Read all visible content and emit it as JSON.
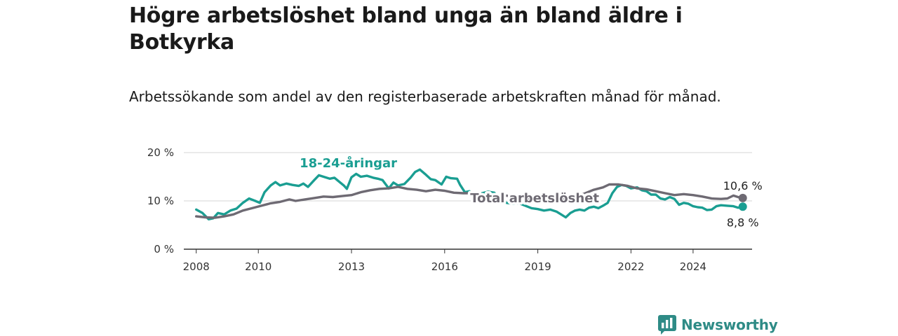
{
  "title": "Högre arbetslöshet bland unga än bland äldre i Botkyrka",
  "subtitle": "Arbetssökande som andel av den registerbaserade arbetskraften månad för månad.",
  "brand": {
    "name": "Newsworthy",
    "color": "#2e8b86",
    "icon": "newsworthy-logo-icon"
  },
  "chart_data": {
    "type": "line",
    "title": "Högre arbetslöshet bland unga än bland äldre i Botkyrka",
    "subtitle": "Arbetssökande som andel av den registerbaserade arbetskraften månad för månad.",
    "xlabel": "",
    "ylabel": "",
    "xlim": [
      2007.6,
      2025.9
    ],
    "ylim": [
      0,
      20
    ],
    "xticks": [
      2008,
      2010,
      2013,
      2016,
      2019,
      2022,
      2024
    ],
    "xtick_labels": [
      "2008",
      "2010",
      "2013",
      "2016",
      "2019",
      "2022",
      "2024"
    ],
    "yticks": [
      0,
      10,
      20
    ],
    "ytick_labels": [
      "0 %",
      "10 %",
      "20 %"
    ],
    "grid": "horizontal",
    "legend": "direct labels",
    "series": [
      {
        "name": "18-24-åringar",
        "color": "#1a9e92",
        "label_at": [
          2012.9,
          17.8
        ],
        "end_label": "8,8 %",
        "points": [
          [
            2008.0,
            8.2
          ],
          [
            2008.2,
            7.5
          ],
          [
            2008.4,
            6.2
          ],
          [
            2008.55,
            6.4
          ],
          [
            2008.7,
            7.5
          ],
          [
            2008.9,
            7.2
          ],
          [
            2009.1,
            8.0
          ],
          [
            2009.3,
            8.4
          ],
          [
            2009.5,
            9.6
          ],
          [
            2009.7,
            10.5
          ],
          [
            2009.9,
            10.0
          ],
          [
            2010.05,
            9.6
          ],
          [
            2010.2,
            11.8
          ],
          [
            2010.4,
            13.2
          ],
          [
            2010.55,
            13.9
          ],
          [
            2010.7,
            13.2
          ],
          [
            2010.9,
            13.6
          ],
          [
            2011.1,
            13.3
          ],
          [
            2011.3,
            13.1
          ],
          [
            2011.45,
            13.6
          ],
          [
            2011.6,
            12.9
          ],
          [
            2011.8,
            14.3
          ],
          [
            2011.95,
            15.3
          ],
          [
            2012.1,
            15.0
          ],
          [
            2012.3,
            14.6
          ],
          [
            2012.45,
            14.8
          ],
          [
            2012.6,
            14.0
          ],
          [
            2012.75,
            13.2
          ],
          [
            2012.85,
            12.5
          ],
          [
            2013.0,
            14.9
          ],
          [
            2013.15,
            15.6
          ],
          [
            2013.3,
            15.0
          ],
          [
            2013.5,
            15.2
          ],
          [
            2013.7,
            14.8
          ],
          [
            2013.85,
            14.6
          ],
          [
            2014.0,
            14.3
          ],
          [
            2014.2,
            12.6
          ],
          [
            2014.35,
            13.8
          ],
          [
            2014.5,
            13.2
          ],
          [
            2014.7,
            13.5
          ],
          [
            2014.9,
            14.8
          ],
          [
            2015.05,
            16.0
          ],
          [
            2015.2,
            16.5
          ],
          [
            2015.4,
            15.4
          ],
          [
            2015.55,
            14.5
          ],
          [
            2015.7,
            14.3
          ],
          [
            2015.9,
            13.4
          ],
          [
            2016.05,
            15.0
          ],
          [
            2016.2,
            14.7
          ],
          [
            2016.4,
            14.6
          ],
          [
            2016.5,
            13.3
          ],
          [
            2016.65,
            11.8
          ],
          [
            2016.8,
            12.0
          ],
          [
            2016.95,
            11.4
          ],
          [
            2017.1,
            10.4
          ],
          [
            2017.2,
            11.6
          ],
          [
            2017.4,
            11.9
          ],
          [
            2017.6,
            11.7
          ],
          [
            2017.8,
            10.0
          ],
          [
            2018.0,
            9.6
          ],
          [
            2018.2,
            9.4
          ],
          [
            2018.4,
            9.5
          ],
          [
            2018.6,
            9.0
          ],
          [
            2018.8,
            8.5
          ],
          [
            2019.0,
            8.3
          ],
          [
            2019.2,
            8.0
          ],
          [
            2019.4,
            8.2
          ],
          [
            2019.6,
            7.8
          ],
          [
            2019.75,
            7.2
          ],
          [
            2019.9,
            6.6
          ],
          [
            2020.05,
            7.5
          ],
          [
            2020.2,
            8.0
          ],
          [
            2020.35,
            8.2
          ],
          [
            2020.5,
            8.0
          ],
          [
            2020.65,
            8.6
          ],
          [
            2020.8,
            8.8
          ],
          [
            2020.95,
            8.5
          ],
          [
            2021.1,
            9.0
          ],
          [
            2021.25,
            9.6
          ],
          [
            2021.4,
            11.6
          ],
          [
            2021.55,
            12.9
          ],
          [
            2021.7,
            13.3
          ],
          [
            2021.85,
            13.1
          ],
          [
            2022.0,
            12.6
          ],
          [
            2022.2,
            12.8
          ],
          [
            2022.35,
            12.2
          ],
          [
            2022.5,
            12.0
          ],
          [
            2022.65,
            11.3
          ],
          [
            2022.8,
            11.3
          ],
          [
            2022.95,
            10.5
          ],
          [
            2023.1,
            10.3
          ],
          [
            2023.25,
            10.8
          ],
          [
            2023.4,
            10.4
          ],
          [
            2023.55,
            9.2
          ],
          [
            2023.7,
            9.6
          ],
          [
            2023.85,
            9.4
          ],
          [
            2024.0,
            8.9
          ],
          [
            2024.15,
            8.7
          ],
          [
            2024.3,
            8.6
          ],
          [
            2024.45,
            8.1
          ],
          [
            2024.6,
            8.2
          ],
          [
            2024.75,
            8.9
          ],
          [
            2024.9,
            9.1
          ],
          [
            2025.1,
            9.0
          ],
          [
            2025.3,
            8.9
          ],
          [
            2025.45,
            8.6
          ],
          [
            2025.6,
            8.8
          ]
        ]
      },
      {
        "name": "Total arbetslöshet",
        "color": "#6e6a73",
        "label_at": [
          2018.9,
          10.6
        ],
        "end_label": "10,6 %",
        "points": [
          [
            2008.0,
            6.8
          ],
          [
            2008.3,
            6.6
          ],
          [
            2008.6,
            6.5
          ],
          [
            2008.9,
            6.8
          ],
          [
            2009.2,
            7.2
          ],
          [
            2009.5,
            8.0
          ],
          [
            2009.8,
            8.5
          ],
          [
            2010.1,
            9.0
          ],
          [
            2010.4,
            9.5
          ],
          [
            2010.7,
            9.8
          ],
          [
            2011.0,
            10.3
          ],
          [
            2011.2,
            10.0
          ],
          [
            2011.5,
            10.3
          ],
          [
            2011.8,
            10.6
          ],
          [
            2012.1,
            10.9
          ],
          [
            2012.4,
            10.8
          ],
          [
            2012.7,
            11.0
          ],
          [
            2013.0,
            11.2
          ],
          [
            2013.3,
            11.8
          ],
          [
            2013.6,
            12.2
          ],
          [
            2013.9,
            12.5
          ],
          [
            2014.2,
            12.6
          ],
          [
            2014.5,
            12.9
          ],
          [
            2014.8,
            12.5
          ],
          [
            2015.1,
            12.3
          ],
          [
            2015.4,
            12.0
          ],
          [
            2015.7,
            12.3
          ],
          [
            2016.0,
            12.1
          ],
          [
            2016.3,
            11.7
          ],
          [
            2016.6,
            11.6
          ],
          [
            2016.9,
            11.6
          ],
          [
            2017.2,
            11.2
          ],
          [
            2017.5,
            11.0
          ],
          [
            2017.8,
            11.2
          ],
          [
            2018.1,
            11.0
          ],
          [
            2018.4,
            10.8
          ],
          [
            2018.7,
            10.5
          ],
          [
            2019.0,
            10.3
          ],
          [
            2019.3,
            10.1
          ],
          [
            2019.6,
            10.2
          ],
          [
            2019.9,
            10.4
          ],
          [
            2020.2,
            10.9
          ],
          [
            2020.5,
            11.5
          ],
          [
            2020.8,
            12.3
          ],
          [
            2021.1,
            12.8
          ],
          [
            2021.3,
            13.4
          ],
          [
            2021.6,
            13.4
          ],
          [
            2021.9,
            13.1
          ],
          [
            2022.2,
            12.6
          ],
          [
            2022.5,
            12.4
          ],
          [
            2022.8,
            12.0
          ],
          [
            2023.1,
            11.6
          ],
          [
            2023.4,
            11.2
          ],
          [
            2023.7,
            11.4
          ],
          [
            2024.0,
            11.2
          ],
          [
            2024.3,
            10.9
          ],
          [
            2024.6,
            10.5
          ],
          [
            2024.9,
            10.4
          ],
          [
            2025.1,
            10.5
          ],
          [
            2025.3,
            11.1
          ],
          [
            2025.5,
            10.7
          ],
          [
            2025.6,
            10.6
          ]
        ]
      }
    ]
  }
}
